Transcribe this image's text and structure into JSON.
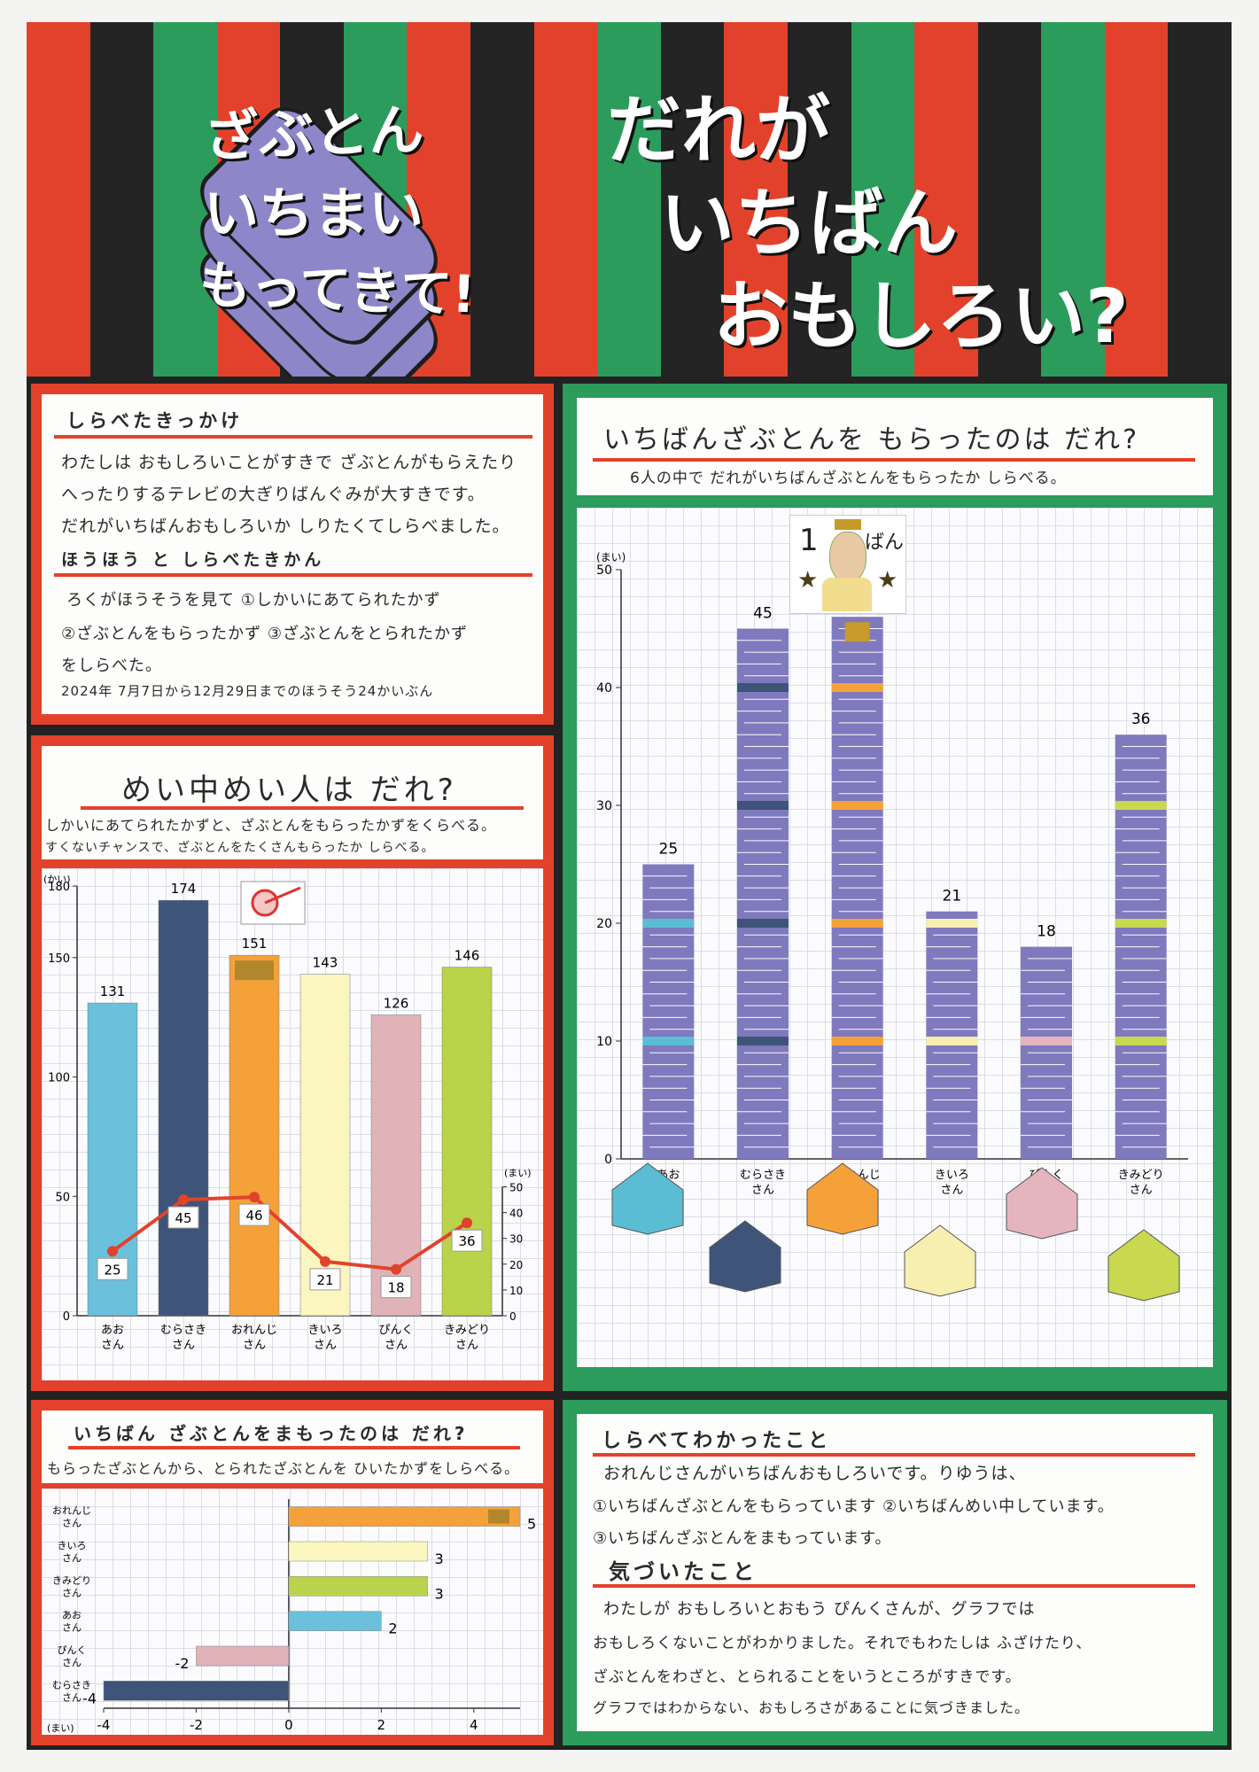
{
  "header": {
    "stripe_colors": [
      "#e2422b",
      "#242424",
      "#2b9c5c",
      "#e2422b",
      "#242424",
      "#2b9c5c",
      "#e2422b",
      "#242424",
      "#e2422b",
      "#2b9c5c",
      "#242424",
      "#e2422b",
      "#242424",
      "#2b9c5c",
      "#e2422b",
      "#242424",
      "#2b9c5c",
      "#e2422b",
      "#242424"
    ],
    "left_title": [
      "ざぶとん",
      "いちまい",
      "もってきて!"
    ],
    "right_title": [
      "だれが",
      "いちばん",
      "おもしろい?"
    ]
  },
  "kikkake": {
    "heading": "しらべたきっかけ",
    "lines": [
      "わたしは おもしろいことがすきで ざぶとんがもらえたり",
      "へったりするテレビの大ぎりばんぐみが大すきです。",
      "だれがいちばんおもしろいか しりたくてしらべました。"
    ],
    "method_heading": "ほうほう と しらべたきかん",
    "method_lines": [
      "ろくがほうそうを見て ①しかいにあてられたかず",
      "②ざぶとんをもらったかず ③ざぶとんをとられたかず",
      "をしらべた。",
      "2024年 7月7日から12月29日までのほうそう24かいぶん"
    ]
  },
  "meichu": {
    "heading": "めい中めい人は だれ?",
    "sub": [
      "しかいにあてられたかずと、ざぶとんをもらったかずをくらべる。",
      "すくないチャンスで、ざぶとんをたくさんもらったか しらべる。"
    ]
  },
  "main_chart": {
    "heading": "いちばんざぶとんを もらったのは だれ?",
    "sub": "6人の中で だれがいちばんざぶとんをもらったか しらべる。",
    "badge_num": "1",
    "badge_text": "ばん"
  },
  "mamotta": {
    "heading": "いちばん ざぶとんをまもったのは だれ?",
    "sub": "もらったざぶとんから、とられたざぶとんを ひいたかずをしらべる。"
  },
  "wakatta": {
    "heading": "しらべてわかったこと",
    "lines": [
      "おれんじさんがいちばんおもしろいです。りゆうは、",
      "①いちばんざぶとんをもらっています ②いちばんめい中しています。",
      "③いちばんざぶとんをまもっています。"
    ],
    "kizuita_heading": "気づいたこと",
    "kizuita_lines": [
      "わたしが おもしろいとおもう ぴんくさんが、グラフでは",
      "おもしろくないことがわかりました。それでもわたしは ふざけたり、",
      "ざぶとんをわざと、とられることをいうところがすきです。",
      "グラフではわからない、おもしろさがあることに気づきました。"
    ]
  },
  "chart_data": [
    {
      "type": "bar",
      "title": "いちばんざぶとんを もらったのは だれ?",
      "ylabel": "(まい)",
      "categories": [
        "あおさん",
        "むらさきさん",
        "おれんじさん",
        "きいろさん",
        "ぴんくさん",
        "きみどりさん"
      ],
      "values": [
        25,
        45,
        46,
        21,
        18,
        36
      ],
      "ylim": [
        0,
        50
      ],
      "yticks": [
        "0",
        "10",
        "20",
        "30",
        "40",
        "50"
      ],
      "bar_color": "#7f79bd",
      "band_colors": [
        "#5bbdd3",
        "#3e5479",
        "#f5a13a",
        "#f6efb0",
        "#e5b5be",
        "#c9d94f"
      ],
      "grid": true
    },
    {
      "type": "bar",
      "title": "めい中めい人は だれ?",
      "ylabel": "(かい)",
      "categories": [
        "あおさん",
        "むらさきさん",
        "おれんじさん",
        "きいろさん",
        "ぴんくさん",
        "きみどりさん"
      ],
      "values": [
        131,
        174,
        151,
        143,
        126,
        146
      ],
      "ylim": [
        0,
        180
      ],
      "yticks": [
        "0",
        "50",
        "100",
        "150",
        "180"
      ],
      "colors": [
        "#6bc0dc",
        "#3e5479",
        "#f5a13a",
        "#fbf5bf",
        "#e0b3b8",
        "#b9d34a"
      ],
      "line_series": {
        "ylabel": "(まい)",
        "values": [
          25,
          45,
          46,
          21,
          18,
          36
        ],
        "ylim": [
          0,
          50
        ],
        "yticks": [
          "0",
          "10",
          "20",
          "30",
          "40",
          "50"
        ],
        "color": "#e2422b"
      },
      "grid": true
    },
    {
      "type": "bar",
      "orientation": "horizontal",
      "title": "いちばん ざぶとんをまもったのは だれ?",
      "xlabel": "(まい)",
      "categories": [
        "おれんじさん",
        "きいろさん",
        "きみどりさん",
        "あおさん",
        "ぴんくさん",
        "むらさきさん"
      ],
      "values": [
        5,
        3,
        3,
        2,
        -2,
        -4
      ],
      "value_labels": [
        "5",
        "3",
        "3",
        "2",
        "-2",
        "-4"
      ],
      "xlim": [
        -4,
        5
      ],
      "xticks": [
        "-4",
        "-2",
        "0",
        "2",
        "4"
      ],
      "colors": [
        "#f5a13a",
        "#fbf5bf",
        "#b9d34a",
        "#6bc0dc",
        "#e0b3b8",
        "#3e5479"
      ],
      "grid": true
    }
  ]
}
